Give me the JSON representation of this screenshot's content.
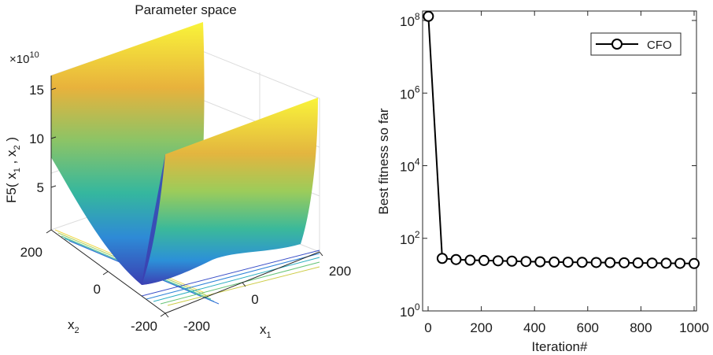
{
  "left_panel": {
    "title": "Parameter space",
    "z_axis_label": "F5( x",
    "z_axis_label_sub1": "1",
    "z_axis_label_mid": " , x",
    "z_axis_label_sub2": "2",
    "z_axis_label_end": " )",
    "z_exponent_base": "×10",
    "z_exponent_power": "10",
    "z_ticks": [
      "5",
      "10",
      "15"
    ],
    "x1_label": "x",
    "x1_label_sub": "1",
    "x2_label": "x",
    "x2_label_sub": "2",
    "x1_ticks": [
      "-200",
      "0",
      "200"
    ],
    "x2_ticks": [
      "200",
      "0",
      "-200"
    ]
  },
  "chart_data": [
    {
      "type": "surface",
      "title": "Parameter space",
      "zlabel": "F5( x1 , x2 )",
      "xlabel": "x1",
      "ylabel": "x2",
      "x_range": [
        -200,
        200
      ],
      "y_range": [
        -200,
        200
      ],
      "z_range": [
        0,
        150000000000.0
      ],
      "z_ticks": [
        50000000000.0,
        100000000000.0,
        150000000000.0
      ],
      "colormap": "parula",
      "contour_below": true
    },
    {
      "type": "line",
      "xlabel": "Iteration#",
      "ylabel": "Best fitness so far",
      "y_scale": "log",
      "xlim": [
        0,
        1000
      ],
      "ylim": [
        1,
        200000000
      ],
      "x_ticks": [
        "0",
        "200",
        "400",
        "600",
        "800",
        "1000"
      ],
      "y_ticks": [
        {
          "base": "10",
          "exp": "0",
          "value": 1
        },
        {
          "base": "10",
          "exp": "2",
          "value": 100
        },
        {
          "base": "10",
          "exp": "4",
          "value": 10000
        },
        {
          "base": "10",
          "exp": "6",
          "value": 1000000
        },
        {
          "base": "10",
          "exp": "8",
          "value": 100000000
        }
      ],
      "legend_position": "top-right",
      "series": [
        {
          "name": "CFO",
          "color": "#000000",
          "marker": "circle",
          "x": [
            1,
            53,
            105,
            158,
            210,
            263,
            315,
            368,
            421,
            474,
            526,
            579,
            632,
            684,
            737,
            789,
            842,
            895,
            947,
            1000
          ],
          "y": [
            130000000,
            28,
            26,
            25,
            24.5,
            24,
            23.5,
            23,
            22.5,
            22.2,
            22,
            21.8,
            21.6,
            21.4,
            21.2,
            21,
            20.8,
            20.6,
            20.4,
            20.2
          ]
        }
      ]
    }
  ]
}
